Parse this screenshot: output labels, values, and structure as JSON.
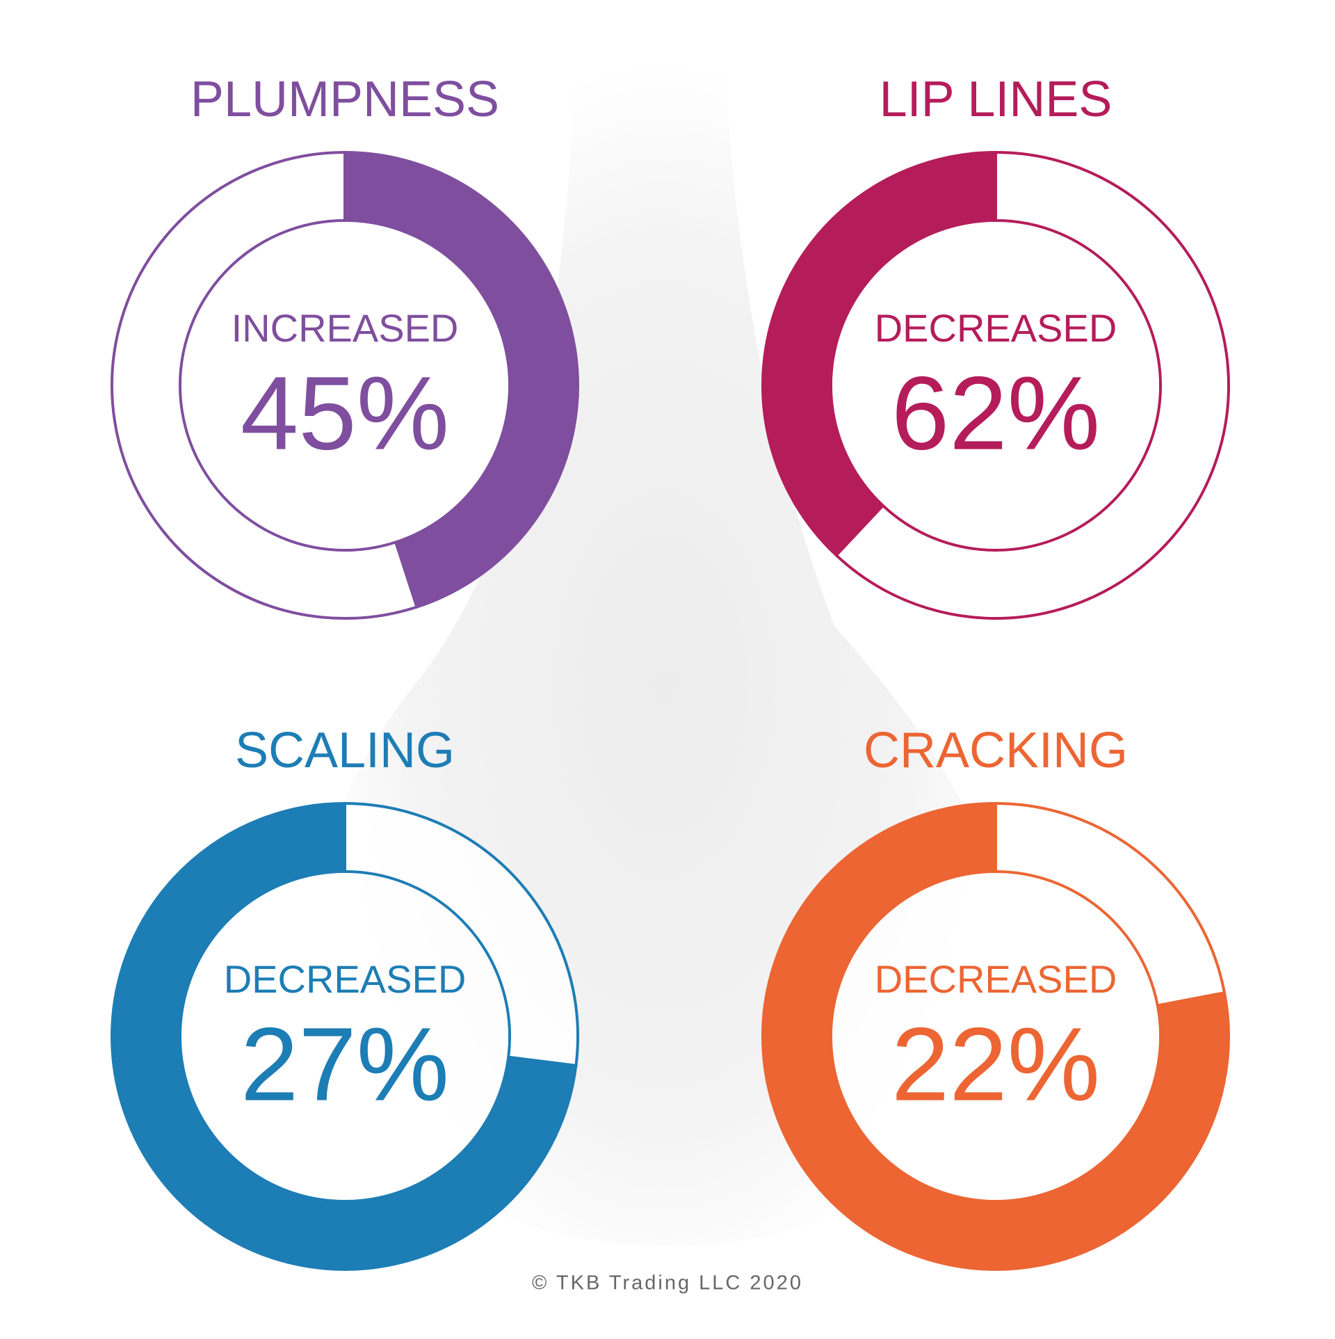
{
  "chart_data": [
    {
      "type": "donut",
      "title": "PLUMPNESS",
      "label": "INCREASED",
      "values": [
        45
      ],
      "value_labels": [
        "45%"
      ],
      "color": "#7f4e9e",
      "highlight": "filled"
    },
    {
      "type": "donut",
      "title": "LIP LINES",
      "label": "DECREASED",
      "values": [
        62
      ],
      "value_labels": [
        "62%"
      ],
      "color": "#b51c5a",
      "highlight": "outline"
    },
    {
      "type": "donut",
      "title": "SCALING",
      "label": "DECREASED",
      "values": [
        27
      ],
      "value_labels": [
        "27%"
      ],
      "color": "#1d7db5",
      "highlight": "outline"
    },
    {
      "type": "donut",
      "title": "CRACKING",
      "label": "DECREASED",
      "values": [
        22
      ],
      "value_labels": [
        "22%"
      ],
      "color": "#ec6533",
      "highlight": "outline"
    }
  ],
  "footer": "© TKB Trading LLC 2020"
}
